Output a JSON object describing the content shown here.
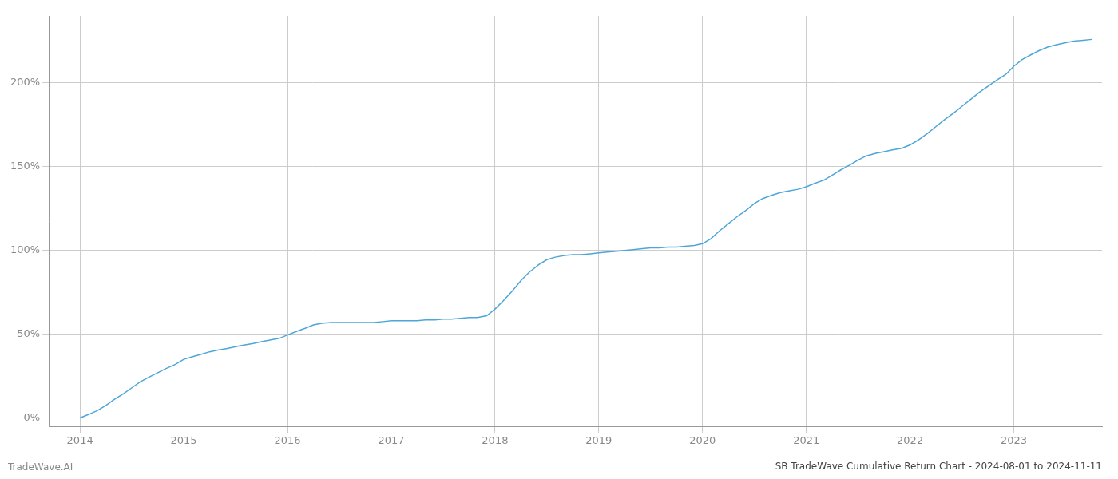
{
  "chart_data": {
    "type": "line",
    "title": "SB TradeWave Cumulative Return Chart - 2024-08-01 to 2024-11-11",
    "annotations": [
      "TradeWave.AI"
    ],
    "color": "#4da6d8",
    "grid": true,
    "x": [
      2014.0,
      2014.08,
      2014.17,
      2014.25,
      2014.33,
      2014.42,
      2014.5,
      2014.58,
      2014.67,
      2014.75,
      2014.83,
      2014.92,
      2015.0,
      2015.08,
      2015.17,
      2015.25,
      2015.33,
      2015.42,
      2015.5,
      2015.58,
      2015.67,
      2015.75,
      2015.83,
      2015.92,
      2016.0,
      2016.08,
      2016.17,
      2016.25,
      2016.33,
      2016.42,
      2016.5,
      2016.58,
      2016.67,
      2016.75,
      2016.83,
      2016.92,
      2017.0,
      2017.08,
      2017.17,
      2017.25,
      2017.33,
      2017.42,
      2017.5,
      2017.58,
      2017.67,
      2017.75,
      2017.83,
      2017.92,
      2018.0,
      2018.08,
      2018.17,
      2018.25,
      2018.33,
      2018.42,
      2018.5,
      2018.58,
      2018.67,
      2018.75,
      2018.83,
      2018.92,
      2019.0,
      2019.08,
      2019.17,
      2019.25,
      2019.33,
      2019.42,
      2019.5,
      2019.58,
      2019.67,
      2019.75,
      2019.83,
      2019.92,
      2020.0,
      2020.08,
      2020.17,
      2020.25,
      2020.33,
      2020.42,
      2020.5,
      2020.58,
      2020.67,
      2020.75,
      2020.83,
      2020.92,
      2021.0,
      2021.08,
      2021.17,
      2021.25,
      2021.33,
      2021.42,
      2021.5,
      2021.58,
      2021.67,
      2021.75,
      2021.83,
      2021.92,
      2022.0,
      2022.08,
      2022.17,
      2022.25,
      2022.33,
      2022.42,
      2022.5,
      2022.58,
      2022.67,
      2022.75,
      2022.83,
      2022.92,
      2023.0,
      2023.08,
      2023.17,
      2023.25,
      2023.33,
      2023.42,
      2023.5,
      2023.58,
      2023.67,
      2023.75
    ],
    "values": [
      0.0,
      2.0,
      4.5,
      7.5,
      11.0,
      14.5,
      18.0,
      21.5,
      24.5,
      27.0,
      29.5,
      32.0,
      35.0,
      36.5,
      38.0,
      39.5,
      40.5,
      41.5,
      42.5,
      43.5,
      44.5,
      45.5,
      46.5,
      47.5,
      49.5,
      51.5,
      53.5,
      55.5,
      56.5,
      57.0,
      57.0,
      57.0,
      57.0,
      57.0,
      57.0,
      57.5,
      58.0,
      58.0,
      58.0,
      58.0,
      58.5,
      58.5,
      59.0,
      59.0,
      59.5,
      60.0,
      60.0,
      61.0,
      65.0,
      70.0,
      76.0,
      82.0,
      87.0,
      91.5,
      94.5,
      96.0,
      97.0,
      97.5,
      97.5,
      98.0,
      98.5,
      99.0,
      99.5,
      100.0,
      100.5,
      101.0,
      101.5,
      101.5,
      102.0,
      102.0,
      102.5,
      103.0,
      104.0,
      107.0,
      112.0,
      116.0,
      120.0,
      124.0,
      128.0,
      131.0,
      133.0,
      134.5,
      135.5,
      136.5,
      138.0,
      140.0,
      142.0,
      145.0,
      148.0,
      151.0,
      154.0,
      156.5,
      158.0,
      159.0,
      160.0,
      161.0,
      163.0,
      166.0,
      170.0,
      174.0,
      178.0,
      182.0,
      186.0,
      190.0,
      194.5,
      198.0,
      201.5,
      205.0,
      210.0,
      214.0,
      217.0,
      219.5,
      221.5,
      223.0,
      224.0,
      225.0,
      225.5,
      226.0
    ],
    "xlim": [
      2013.7,
      2023.85
    ],
    "xticks": [
      2014,
      2015,
      2016,
      2017,
      2018,
      2019,
      2020,
      2021,
      2022,
      2023
    ],
    "ylim": [
      -5,
      240
    ],
    "yticks": [
      {
        "value": 0,
        "label": "0%"
      },
      {
        "value": 50,
        "label": "50%"
      },
      {
        "value": 100,
        "label": "100%"
      },
      {
        "value": 150,
        "label": "150%"
      },
      {
        "value": 200,
        "label": "200%"
      }
    ]
  }
}
